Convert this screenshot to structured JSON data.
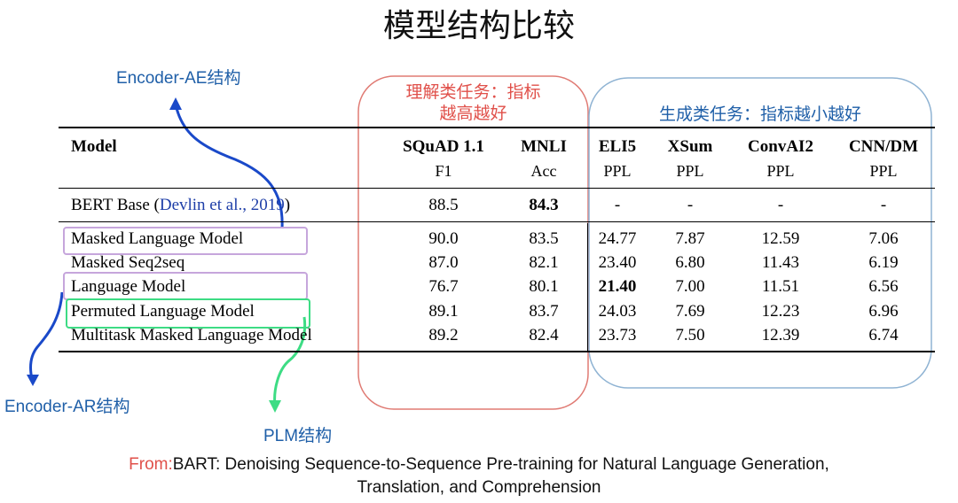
{
  "title": "模型结构比较",
  "annotations": {
    "encoder_ae": "Encoder-AE结构",
    "encoder_ar": "Encoder-AR结构",
    "plm": "PLM结构",
    "understanding_line1": "理解类任务：指标",
    "understanding_line2": "越高越好",
    "generation": "生成类任务：指标越小越好"
  },
  "table": {
    "header": {
      "model": "Model",
      "cols": [
        {
          "name": "SQuAD 1.1",
          "metric": "F1"
        },
        {
          "name": "MNLI",
          "metric": "Acc"
        },
        {
          "name": "ELI5",
          "metric": "PPL"
        },
        {
          "name": "XSum",
          "metric": "PPL"
        },
        {
          "name": "ConvAI2",
          "metric": "PPL"
        },
        {
          "name": "CNN/DM",
          "metric": "PPL"
        }
      ]
    },
    "baseline": {
      "model_prefix": "BERT Base (",
      "model_cite": "Devlin et al., 2019",
      "model_suffix": ")",
      "values": [
        "88.5",
        "84.3",
        "-",
        "-",
        "-",
        "-"
      ]
    },
    "rows": [
      {
        "model": "Masked Language Model",
        "values": [
          "90.0",
          "83.5",
          "24.77",
          "7.87",
          "12.59",
          "7.06"
        ]
      },
      {
        "model": "Masked Seq2seq",
        "values": [
          "87.0",
          "82.1",
          "23.40",
          "6.80",
          "11.43",
          "6.19"
        ]
      },
      {
        "model": "Language Model",
        "values": [
          "76.7",
          "80.1",
          "21.40",
          "7.00",
          "11.51",
          "6.56"
        ]
      },
      {
        "model": "Permuted Language Model",
        "values": [
          "89.1",
          "83.7",
          "24.03",
          "7.69",
          "12.23",
          "6.96"
        ]
      },
      {
        "model": "Multitask Masked Language Model",
        "values": [
          "89.2",
          "82.4",
          "23.73",
          "7.50",
          "12.39",
          "6.74"
        ]
      }
    ]
  },
  "citation": {
    "from": "From:",
    "line1": "BART: Denoising Sequence-to-Sequence Pre-training for Natural Language Generation,",
    "line2": "Translation, and Comprehension"
  },
  "colors": {
    "annotation_blue": "#1f5fa8",
    "understanding_red": "#e0504a",
    "generation_blue": "#7fa7c9",
    "ae_box_purple": "#c6a6dc",
    "plm_green": "#3ddc84",
    "arrow_blue": "#1a49c9"
  }
}
